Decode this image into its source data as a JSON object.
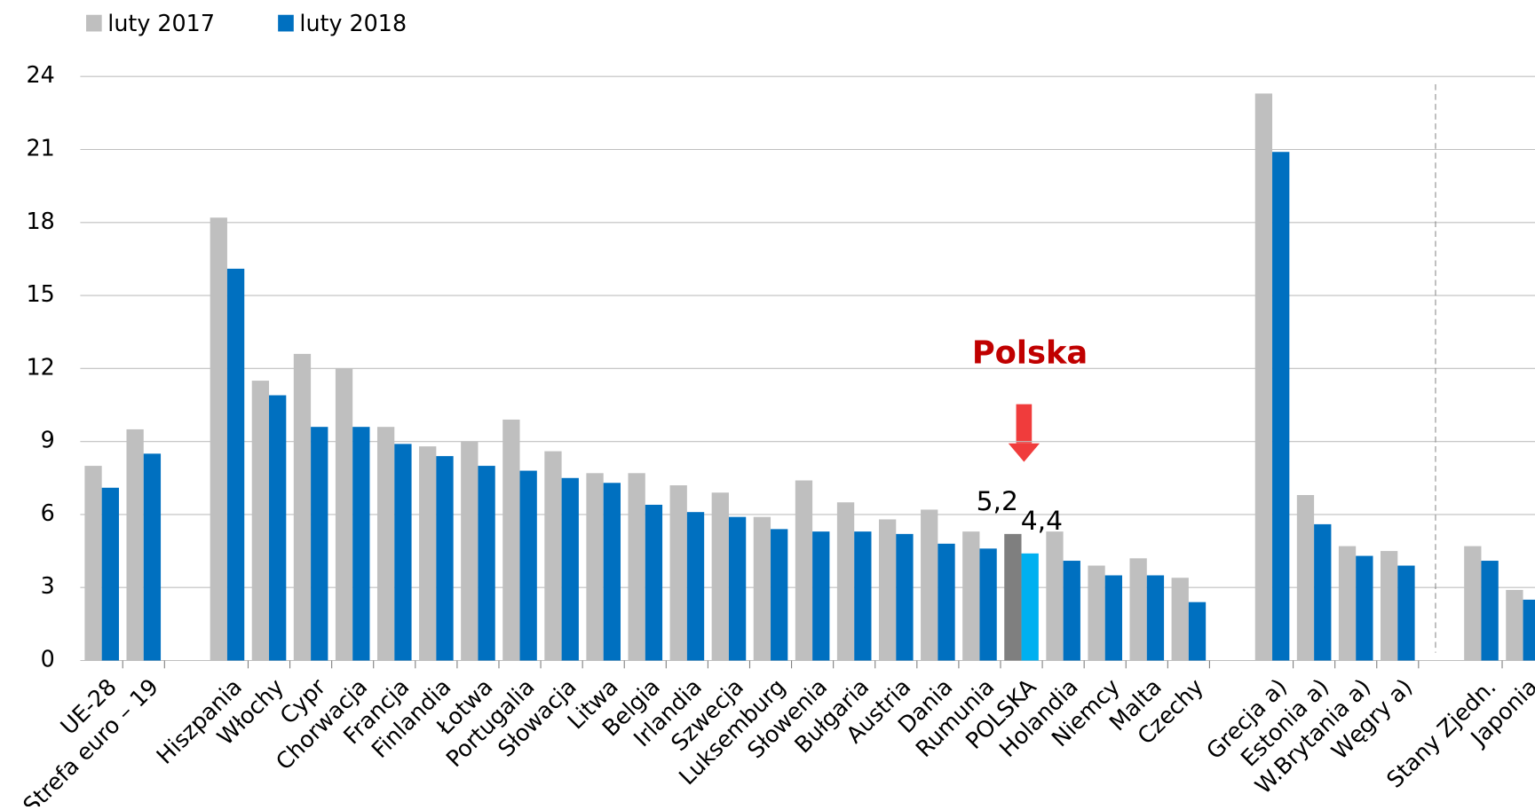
{
  "chart_data": {
    "type": "bar",
    "categories": [
      "UE-28",
      "Strefa euro – 19",
      null,
      "Hiszpania",
      "Włochy",
      "Cypr",
      "Chorwacja",
      "Francja",
      "Finlandia",
      "Łotwa",
      "Portugalia",
      "Słowacja",
      "Litwa",
      "Belgia",
      "Irlandia",
      "Szwecja",
      "Luksemburg",
      "Słowenia",
      "Bułgaria",
      "Austria",
      "Dania",
      "Rumunia",
      "POLSKA",
      "Holandia",
      "Niemcy",
      "Malta",
      "Czechy",
      null,
      "Grecja a)",
      "Estonia a)",
      "W.Brytania a)",
      "Węgry a)",
      null,
      "Stany Zjedn.",
      "Japonia"
    ],
    "series": [
      {
        "name": "luty 2017",
        "color": "#bfbfbf",
        "highlight_color": "#7f7f7f",
        "values": [
          8.0,
          9.5,
          null,
          18.2,
          11.5,
          12.6,
          12.0,
          9.6,
          8.8,
          9.0,
          9.9,
          8.6,
          7.7,
          7.7,
          7.2,
          6.9,
          5.9,
          7.4,
          6.5,
          5.8,
          6.2,
          5.3,
          5.2,
          5.3,
          3.9,
          4.2,
          3.4,
          null,
          23.3,
          6.8,
          4.7,
          4.5,
          null,
          4.7,
          2.9
        ],
        "value_labels": [
          null,
          null,
          null,
          null,
          null,
          null,
          null,
          null,
          null,
          null,
          null,
          null,
          null,
          null,
          null,
          null,
          null,
          null,
          null,
          null,
          null,
          null,
          "5,2",
          null,
          null,
          null,
          null,
          null,
          null,
          null,
          null,
          null,
          null,
          null,
          null
        ]
      },
      {
        "name": "luty 2018",
        "color": "#0070c0",
        "highlight_color": "#00b0f0",
        "values": [
          7.1,
          8.5,
          null,
          16.1,
          10.9,
          9.6,
          9.6,
          8.9,
          8.4,
          8.0,
          7.8,
          7.5,
          7.3,
          6.4,
          6.1,
          5.9,
          5.4,
          5.3,
          5.3,
          5.2,
          4.8,
          4.6,
          4.4,
          4.1,
          3.5,
          3.5,
          2.4,
          null,
          20.9,
          5.6,
          4.3,
          3.9,
          null,
          4.1,
          2.5
        ],
        "value_labels": [
          null,
          null,
          null,
          null,
          null,
          null,
          null,
          null,
          null,
          null,
          null,
          null,
          null,
          null,
          null,
          null,
          null,
          null,
          null,
          null,
          null,
          null,
          "4,4",
          null,
          null,
          null,
          null,
          null,
          null,
          null,
          null,
          null,
          null,
          null,
          null
        ]
      }
    ],
    "highlight_index": 22,
    "annotation": "Polska",
    "ylim": [
      0,
      24
    ],
    "yticks": [
      0,
      3,
      6,
      9,
      12,
      15,
      18,
      21,
      24
    ],
    "grid": true,
    "legend": "top-left"
  }
}
